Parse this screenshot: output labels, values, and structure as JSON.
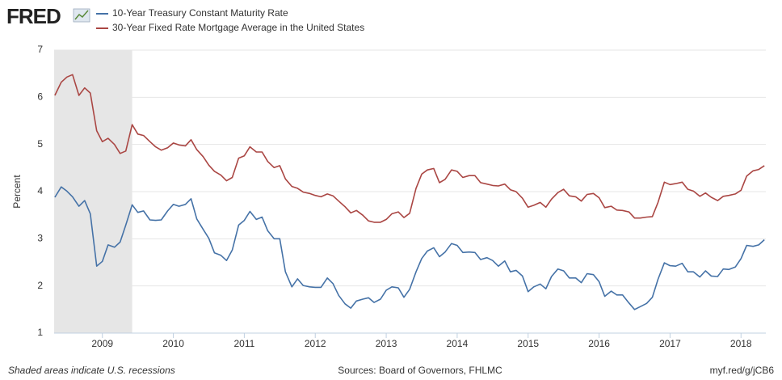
{
  "logo": "FRED",
  "note": "Shaded areas indicate U.S. recessions",
  "source": "Sources: Board of Governors, FHLMC",
  "link": "myf.red/g/jCB6",
  "chart_data": {
    "type": "line",
    "ylabel": "Percent",
    "grid": true,
    "shaded": [
      [
        2008.32,
        2009.42
      ]
    ],
    "xlim": [
      2008.32,
      2018.35
    ],
    "xticks": [
      2009,
      2010,
      2011,
      2012,
      2013,
      2014,
      2015,
      2016,
      2017,
      2018
    ],
    "ylim": [
      1,
      7
    ],
    "yticks": [
      1,
      2,
      3,
      4,
      5,
      6,
      7
    ],
    "x": [
      2008.33,
      2008.42,
      2008.5,
      2008.58,
      2008.67,
      2008.75,
      2008.83,
      2008.92,
      2009,
      2009.08,
      2009.17,
      2009.25,
      2009.33,
      2009.42,
      2009.5,
      2009.58,
      2009.67,
      2009.75,
      2009.83,
      2009.92,
      2010,
      2010.08,
      2010.17,
      2010.25,
      2010.33,
      2010.42,
      2010.5,
      2010.58,
      2010.67,
      2010.75,
      2010.83,
      2010.92,
      2011,
      2011.08,
      2011.17,
      2011.25,
      2011.33,
      2011.42,
      2011.5,
      2011.58,
      2011.67,
      2011.75,
      2011.83,
      2011.92,
      2012,
      2012.08,
      2012.17,
      2012.25,
      2012.33,
      2012.42,
      2012.5,
      2012.58,
      2012.67,
      2012.75,
      2012.83,
      2012.92,
      2013,
      2013.08,
      2013.17,
      2013.25,
      2013.33,
      2013.42,
      2013.5,
      2013.58,
      2013.67,
      2013.75,
      2013.83,
      2013.92,
      2014,
      2014.08,
      2014.17,
      2014.25,
      2014.33,
      2014.42,
      2014.5,
      2014.58,
      2014.67,
      2014.75,
      2014.83,
      2014.92,
      2015,
      2015.08,
      2015.17,
      2015.25,
      2015.33,
      2015.42,
      2015.5,
      2015.58,
      2015.67,
      2015.75,
      2015.83,
      2015.92,
      2016,
      2016.08,
      2016.17,
      2016.25,
      2016.33,
      2016.42,
      2016.5,
      2016.58,
      2016.67,
      2016.75,
      2016.83,
      2016.92,
      2017,
      2017.08,
      2017.17,
      2017.25,
      2017.33,
      2017.42,
      2017.5,
      2017.58,
      2017.67,
      2017.75,
      2017.83,
      2017.92,
      2018,
      2018.08,
      2018.17,
      2018.25,
      2018.33
    ],
    "series": [
      {
        "name": "10-Year Treasury Constant Maturity Rate",
        "color": "#4572a7",
        "values": [
          3.88,
          4.1,
          4.01,
          3.89,
          3.69,
          3.81,
          3.53,
          2.42,
          2.52,
          2.87,
          2.82,
          2.93,
          3.29,
          3.72,
          3.56,
          3.59,
          3.4,
          3.39,
          3.4,
          3.59,
          3.73,
          3.69,
          3.73,
          3.85,
          3.42,
          3.2,
          3.01,
          2.7,
          2.65,
          2.54,
          2.76,
          3.29,
          3.39,
          3.58,
          3.41,
          3.46,
          3.17,
          3.0,
          3.0,
          2.3,
          1.98,
          2.15,
          2.01,
          1.98,
          1.97,
          1.97,
          2.17,
          2.05,
          1.8,
          1.62,
          1.53,
          1.68,
          1.72,
          1.75,
          1.65,
          1.72,
          1.91,
          1.98,
          1.96,
          1.76,
          1.93,
          2.3,
          2.58,
          2.74,
          2.81,
          2.62,
          2.72,
          2.9,
          2.86,
          2.71,
          2.72,
          2.71,
          2.56,
          2.6,
          2.54,
          2.42,
          2.53,
          2.3,
          2.33,
          2.21,
          1.88,
          1.98,
          2.04,
          1.94,
          2.2,
          2.36,
          2.32,
          2.17,
          2.17,
          2.07,
          2.26,
          2.24,
          2.09,
          1.78,
          1.89,
          1.81,
          1.81,
          1.64,
          1.5,
          1.56,
          1.63,
          1.76,
          2.14,
          2.49,
          2.43,
          2.42,
          2.48,
          2.3,
          2.3,
          2.19,
          2.32,
          2.21,
          2.2,
          2.36,
          2.35,
          2.4,
          2.58,
          2.86,
          2.84,
          2.87,
          2.98
        ]
      },
      {
        "name": "30-Year Fixed Rate Mortgage Average in the United States",
        "color": "#aa4643",
        "values": [
          6.04,
          6.32,
          6.43,
          6.48,
          6.04,
          6.2,
          6.09,
          5.29,
          5.06,
          5.13,
          5.0,
          4.81,
          4.86,
          5.42,
          5.22,
          5.19,
          5.06,
          4.95,
          4.88,
          4.93,
          5.03,
          4.99,
          4.97,
          5.1,
          4.89,
          4.74,
          4.56,
          4.43,
          4.35,
          4.23,
          4.3,
          4.71,
          4.76,
          4.95,
          4.84,
          4.84,
          4.64,
          4.51,
          4.55,
          4.27,
          4.11,
          4.07,
          3.99,
          3.96,
          3.92,
          3.89,
          3.95,
          3.91,
          3.8,
          3.68,
          3.55,
          3.6,
          3.5,
          3.38,
          3.35,
          3.35,
          3.41,
          3.53,
          3.57,
          3.45,
          3.54,
          4.07,
          4.37,
          4.46,
          4.49,
          4.19,
          4.26,
          4.46,
          4.43,
          4.3,
          4.34,
          4.34,
          4.19,
          4.16,
          4.13,
          4.12,
          4.16,
          4.04,
          4.0,
          3.86,
          3.67,
          3.71,
          3.77,
          3.67,
          3.84,
          3.98,
          4.05,
          3.91,
          3.89,
          3.8,
          3.94,
          3.96,
          3.87,
          3.66,
          3.69,
          3.61,
          3.6,
          3.57,
          3.44,
          3.44,
          3.46,
          3.47,
          3.77,
          4.2,
          4.15,
          4.17,
          4.2,
          4.05,
          4.01,
          3.9,
          3.97,
          3.88,
          3.81,
          3.9,
          3.92,
          3.95,
          4.03,
          4.33,
          4.44,
          4.47,
          4.55
        ]
      }
    ]
  }
}
